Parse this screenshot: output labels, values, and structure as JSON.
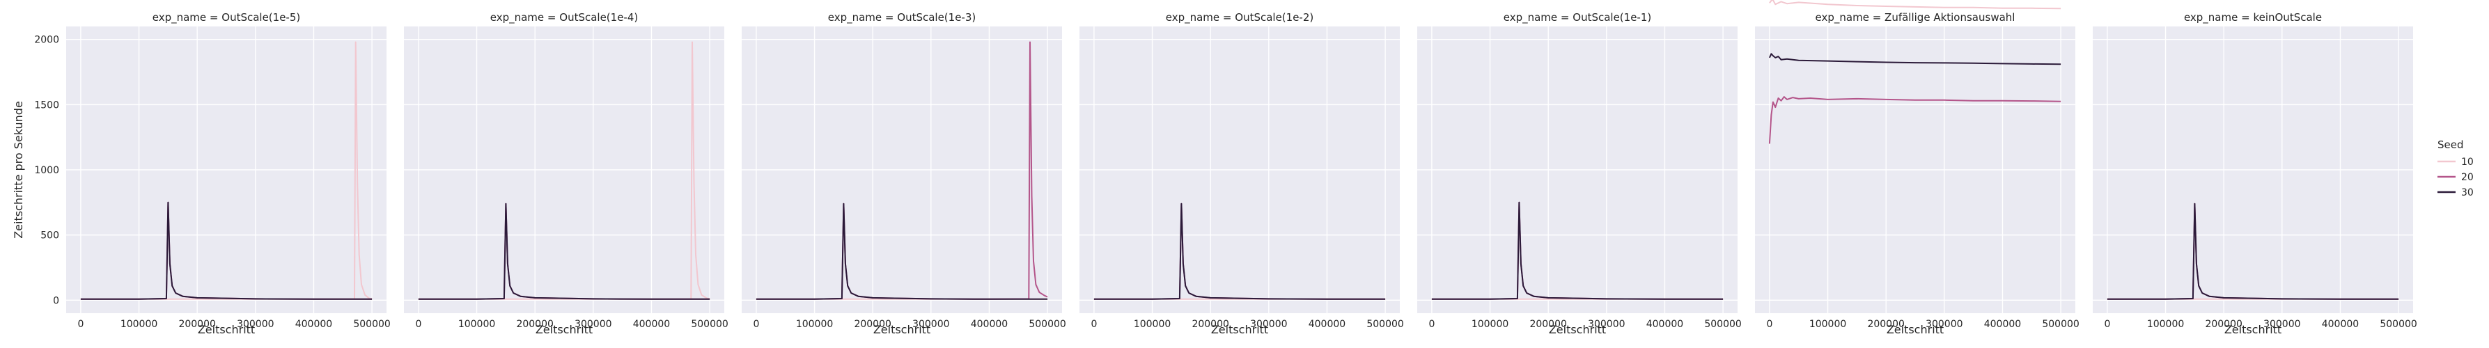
{
  "chart_data": {
    "type": "line",
    "layout": "facet-grid",
    "xlabel": "Zeitschritt",
    "ylabel": "Zeitschritte pro Sekunde",
    "xlim": [
      -25000,
      525000
    ],
    "ylim": [
      -100,
      2100
    ],
    "xticks": [
      0,
      100000,
      200000,
      300000,
      400000,
      500000
    ],
    "xtick_labels": [
      "0",
      "100000",
      "200000",
      "300000",
      "400000",
      "500000"
    ],
    "yticks": [
      0,
      500,
      1000,
      1500,
      2000
    ],
    "ytick_labels": [
      "0",
      "500",
      "1000",
      "1500",
      "2000"
    ],
    "grid": true,
    "background": "#eaeaf2",
    "legend": {
      "title": "Seed",
      "placement": "right",
      "entries": [
        {
          "label": "10",
          "color": "#f2c7cf"
        },
        {
          "label": "20",
          "color": "#b4558a"
        },
        {
          "label": "30",
          "color": "#2b1a39"
        }
      ]
    },
    "facets": [
      {
        "title": "exp_name = OutScale(1e-5)",
        "series": [
          {
            "seed": "10",
            "x": [
              0,
              100000,
              200000,
              300000,
              400000,
              470000,
              472000,
              475000,
              478000,
              482000,
              488000,
              495000,
              500000
            ],
            "y": [
              8,
              8,
              8,
              8,
              8,
              10,
              1980,
              900,
              350,
              120,
              40,
              15,
              10
            ]
          },
          {
            "seed": "20",
            "x": [
              0,
              100000,
              147000,
              150000,
              153000,
              157000,
              163000,
              175000,
              200000,
              300000,
              400000,
              500000
            ],
            "y": [
              8,
              8,
              12,
              750,
              280,
              110,
              55,
              30,
              18,
              10,
              8,
              8
            ]
          },
          {
            "seed": "30",
            "x": [
              0,
              100000,
              147000,
              150000,
              153000,
              157000,
              163000,
              175000,
              200000,
              300000,
              400000,
              500000
            ],
            "y": [
              8,
              8,
              12,
              750,
              280,
              110,
              55,
              30,
              18,
              10,
              8,
              8
            ]
          }
        ]
      },
      {
        "title": "exp_name = OutScale(1e-4)",
        "series": [
          {
            "seed": "10",
            "x": [
              0,
              100000,
              200000,
              300000,
              400000,
              468000,
              470000,
              473000,
              476000,
              480000,
              486000,
              495000,
              500000
            ],
            "y": [
              8,
              8,
              8,
              8,
              8,
              10,
              1980,
              900,
              350,
              120,
              40,
              15,
              10
            ]
          },
          {
            "seed": "20",
            "x": [
              0,
              100000,
              147000,
              150000,
              153000,
              157000,
              163000,
              175000,
              200000,
              300000,
              400000,
              500000
            ],
            "y": [
              8,
              8,
              12,
              740,
              280,
              110,
              55,
              30,
              18,
              10,
              8,
              8
            ]
          },
          {
            "seed": "30",
            "x": [
              0,
              100000,
              147000,
              150000,
              153000,
              157000,
              163000,
              175000,
              200000,
              300000,
              400000,
              500000
            ],
            "y": [
              8,
              8,
              12,
              740,
              280,
              110,
              55,
              30,
              18,
              10,
              8,
              8
            ]
          }
        ]
      },
      {
        "title": "exp_name = OutScale(1e-3)",
        "series": [
          {
            "seed": "10",
            "x": [
              0,
              100000,
              200000,
              300000,
              400000,
              500000
            ],
            "y": [
              8,
              8,
              8,
              8,
              8,
              8
            ]
          },
          {
            "seed": "20",
            "x": [
              0,
              100000,
              147000,
              150000,
              153000,
              157000,
              163000,
              175000,
              200000,
              300000,
              400000,
              468000,
              470000,
              473000,
              476000,
              480000,
              486000,
              495000,
              500000
            ],
            "y": [
              8,
              8,
              12,
              740,
              280,
              110,
              55,
              30,
              18,
              10,
              8,
              10,
              1980,
              800,
              300,
              120,
              60,
              35,
              25
            ]
          },
          {
            "seed": "30",
            "x": [
              0,
              100000,
              147000,
              150000,
              153000,
              157000,
              163000,
              175000,
              200000,
              300000,
              400000,
              500000
            ],
            "y": [
              8,
              8,
              12,
              740,
              280,
              110,
              55,
              30,
              18,
              10,
              8,
              8
            ]
          }
        ]
      },
      {
        "title": "exp_name = OutScale(1e-2)",
        "series": [
          {
            "seed": "10",
            "x": [
              0,
              100000,
              200000,
              300000,
              400000,
              500000
            ],
            "y": [
              8,
              8,
              8,
              8,
              8,
              8
            ]
          },
          {
            "seed": "20",
            "x": [
              0,
              100000,
              147000,
              150000,
              153000,
              157000,
              163000,
              175000,
              200000,
              300000,
              400000,
              500000
            ],
            "y": [
              8,
              8,
              12,
              740,
              280,
              110,
              55,
              30,
              18,
              10,
              8,
              8
            ]
          },
          {
            "seed": "30",
            "x": [
              0,
              100000,
              147000,
              150000,
              153000,
              157000,
              163000,
              175000,
              200000,
              300000,
              400000,
              500000
            ],
            "y": [
              8,
              8,
              12,
              740,
              280,
              110,
              55,
              30,
              18,
              10,
              8,
              8
            ]
          }
        ]
      },
      {
        "title": "exp_name = OutScale(1e-1)",
        "series": [
          {
            "seed": "10",
            "x": [
              0,
              100000,
              200000,
              300000,
              400000,
              500000
            ],
            "y": [
              8,
              8,
              8,
              8,
              8,
              8
            ]
          },
          {
            "seed": "20",
            "x": [
              0,
              100000,
              147000,
              150000,
              153000,
              157000,
              163000,
              175000,
              200000,
              300000,
              400000,
              500000
            ],
            "y": [
              8,
              8,
              12,
              750,
              280,
              110,
              55,
              30,
              18,
              10,
              8,
              8
            ]
          },
          {
            "seed": "30",
            "x": [
              0,
              100000,
              147000,
              150000,
              153000,
              157000,
              163000,
              175000,
              200000,
              300000,
              400000,
              500000
            ],
            "y": [
              8,
              8,
              12,
              750,
              280,
              110,
              55,
              30,
              18,
              10,
              8,
              8
            ]
          }
        ]
      },
      {
        "title": "exp_name = Zufällige Aktionsauswahl",
        "series": [
          {
            "seed": "10",
            "x": [
              0,
              5000,
              10000,
              20000,
              30000,
              50000,
              100000,
              150000,
              200000,
              250000,
              300000,
              350000,
              400000,
              450000,
              500000
            ],
            "y": [
              2280,
              2310,
              2270,
              2290,
              2275,
              2285,
              2270,
              2260,
              2255,
              2250,
              2245,
              2245,
              2240,
              2240,
              2238
            ]
          },
          {
            "seed": "20",
            "x": [
              0,
              3000,
              6000,
              10000,
              15000,
              20000,
              25000,
              30000,
              40000,
              50000,
              70000,
              100000,
              150000,
              200000,
              250000,
              300000,
              350000,
              400000,
              450000,
              500000
            ],
            "y": [
              1200,
              1420,
              1520,
              1480,
              1550,
              1530,
              1560,
              1540,
              1555,
              1545,
              1550,
              1540,
              1545,
              1540,
              1535,
              1535,
              1530,
              1530,
              1528,
              1525
            ]
          },
          {
            "seed": "30",
            "x": [
              0,
              3000,
              6000,
              10000,
              15000,
              20000,
              30000,
              50000,
              100000,
              150000,
              200000,
              250000,
              300000,
              350000,
              400000,
              450000,
              500000
            ],
            "y": [
              1860,
              1890,
              1875,
              1860,
              1870,
              1845,
              1850,
              1840,
              1835,
              1830,
              1825,
              1822,
              1820,
              1818,
              1815,
              1812,
              1810
            ]
          }
        ]
      },
      {
        "title": "exp_name = keinOutScale",
        "series": [
          {
            "seed": "10",
            "x": [
              0,
              100000,
              200000,
              300000,
              400000,
              500000
            ],
            "y": [
              8,
              8,
              8,
              8,
              8,
              8
            ]
          },
          {
            "seed": "20",
            "x": [
              0,
              100000,
              147000,
              150000,
              153000,
              157000,
              163000,
              175000,
              200000,
              300000,
              400000,
              500000
            ],
            "y": [
              8,
              8,
              12,
              740,
              280,
              110,
              55,
              30,
              18,
              10,
              8,
              8
            ]
          },
          {
            "seed": "30",
            "x": [
              0,
              100000,
              147000,
              150000,
              153000,
              157000,
              163000,
              175000,
              200000,
              300000,
              400000,
              500000
            ],
            "y": [
              8,
              8,
              12,
              740,
              280,
              110,
              55,
              30,
              18,
              10,
              8,
              8
            ]
          }
        ]
      }
    ]
  }
}
